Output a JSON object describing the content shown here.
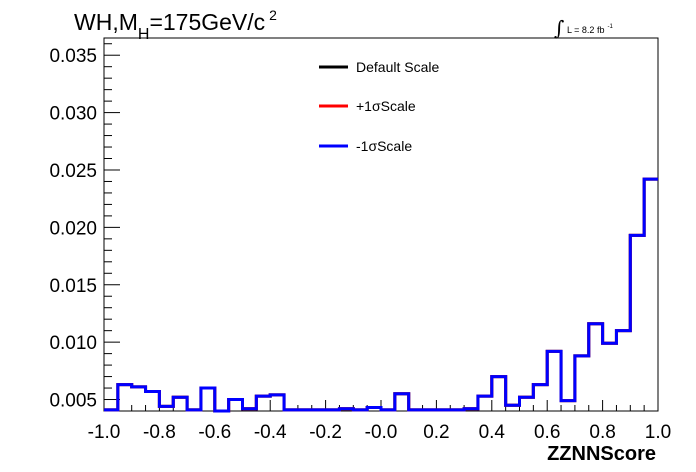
{
  "chart_data": {
    "type": "line",
    "title_main": "WH,M",
    "title_sub": "H",
    "title_rest": "=175GeV/c",
    "title_sup": "2",
    "lumi_label": "L = 8.2 fb",
    "lumi_sup": "-1",
    "xlabel": "ZZNNScore",
    "ylabel": "",
    "xlim": [
      -1.0,
      1.0
    ],
    "ylim": [
      0.004,
      0.0365
    ],
    "x_ticks": [
      -1.0,
      -0.8,
      -0.6,
      -0.4,
      -0.2,
      0.0,
      0.2,
      0.4,
      0.6,
      0.8,
      1.0
    ],
    "x_tick_labels": [
      "-1.0",
      "-0.8",
      "-0.6",
      "-0.4",
      "-0.2",
      "-0.0",
      "0.2",
      "0.4",
      "0.6",
      "0.8",
      "1.0"
    ],
    "y_ticks": [
      0.005,
      0.01,
      0.015,
      0.02,
      0.025,
      0.03,
      0.035
    ],
    "y_tick_labels": [
      "0.005",
      "0.010",
      "0.015",
      "0.020",
      "0.025",
      "0.030",
      "0.035"
    ],
    "grid": false,
    "legend_position": "top-center",
    "bin_edges": [
      -1.0,
      -0.95,
      -0.9,
      -0.85,
      -0.8,
      -0.75,
      -0.7,
      -0.65,
      -0.6,
      -0.55,
      -0.5,
      -0.45,
      -0.4,
      -0.35,
      -0.3,
      -0.25,
      -0.2,
      -0.15,
      -0.1,
      -0.05,
      0.0,
      0.05,
      0.1,
      0.15,
      0.2,
      0.25,
      0.3,
      0.35,
      0.4,
      0.45,
      0.5,
      0.55,
      0.6,
      0.65,
      0.7,
      0.75,
      0.8,
      0.85,
      0.9,
      0.95,
      1.0
    ],
    "series": [
      {
        "name": "Default Scale",
        "color": "#000000",
        "values": [
          0.0041,
          0.0063,
          0.0061,
          0.0057,
          0.0044,
          0.0052,
          0.0041,
          0.006,
          0.004,
          0.005,
          0.0042,
          0.0053,
          0.0054,
          0.0041,
          0.0041,
          0.0041,
          0.0041,
          0.0042,
          0.0041,
          0.0043,
          0.0041,
          0.0055,
          0.0041,
          0.0041,
          0.0041,
          0.0041,
          0.0042,
          0.0053,
          0.007,
          0.0045,
          0.0052,
          0.0063,
          0.0092,
          0.0049,
          0.0088,
          0.0116,
          0.0099,
          0.011,
          0.0193,
          0.0242
        ]
      },
      {
        "name": "+1σScale",
        "color": "#ff0000",
        "values": [
          0.0041,
          0.0063,
          0.0061,
          0.0057,
          0.0044,
          0.0052,
          0.0041,
          0.006,
          0.004,
          0.005,
          0.0042,
          0.0053,
          0.0054,
          0.0041,
          0.0041,
          0.0041,
          0.0041,
          0.0042,
          0.0041,
          0.0043,
          0.0041,
          0.0055,
          0.0041,
          0.0041,
          0.0041,
          0.0041,
          0.0042,
          0.0053,
          0.007,
          0.0045,
          0.0052,
          0.0063,
          0.0092,
          0.0049,
          0.0088,
          0.0116,
          0.0099,
          0.011,
          0.0193,
          0.0242
        ]
      },
      {
        "name": "-1σScale",
        "color": "#0000ff",
        "values": [
          0.0041,
          0.0063,
          0.0061,
          0.0057,
          0.0044,
          0.0052,
          0.0041,
          0.006,
          0.004,
          0.005,
          0.0042,
          0.0053,
          0.0054,
          0.0041,
          0.0041,
          0.0041,
          0.0041,
          0.0042,
          0.0041,
          0.0043,
          0.0041,
          0.0055,
          0.0041,
          0.0041,
          0.0041,
          0.0041,
          0.0042,
          0.0053,
          0.007,
          0.0045,
          0.0052,
          0.0063,
          0.0092,
          0.0049,
          0.0088,
          0.0116,
          0.0099,
          0.011,
          0.0193,
          0.0242
        ]
      }
    ]
  }
}
